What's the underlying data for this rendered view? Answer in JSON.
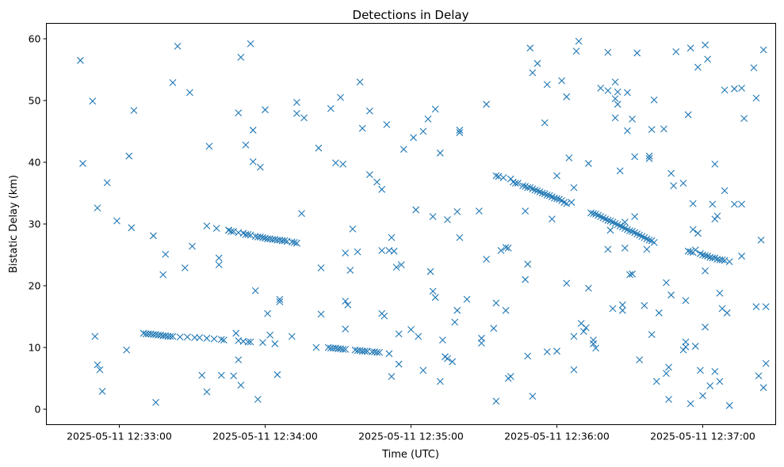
{
  "chart_data": {
    "type": "scatter",
    "title": "Detections in Delay",
    "xlabel": "Time (UTC)",
    "ylabel": "Bistatic Delay (km)",
    "marker": "x",
    "color": "#1f77b4",
    "grid": false,
    "legend": "none",
    "x_start": "2025-05-11 12:32:30",
    "x_end": "2025-05-11 12:37:30",
    "ylim": [
      -2.5,
      62.5
    ],
    "xticks": [
      "2025-05-11 12:33:00",
      "2025-05-11 12:34:00",
      "2025-05-11 12:35:00",
      "2025-05-11 12:36:00",
      "2025-05-11 12:37:00"
    ],
    "yticks": [
      0,
      10,
      20,
      30,
      40,
      50,
      60
    ],
    "points_xy_seconds_note": "x values in seconds past 2025-05-11 12:32:00",
    "points": [
      [
        14,
        56.5
      ],
      [
        15,
        39.8
      ],
      [
        19,
        49.9
      ],
      [
        20,
        11.8
      ],
      [
        21,
        32.6
      ],
      [
        21,
        7.2
      ],
      [
        22,
        6.4
      ],
      [
        23,
        2.9
      ],
      [
        25,
        36.7
      ],
      [
        29,
        30.5
      ],
      [
        33,
        9.6
      ],
      [
        34,
        41.0
      ],
      [
        35,
        29.4
      ],
      [
        36,
        48.4
      ],
      [
        44,
        28.1
      ],
      [
        45,
        1.1
      ],
      [
        48,
        21.8
      ],
      [
        49,
        25.1
      ],
      [
        52,
        52.9
      ],
      [
        54,
        58.8
      ],
      [
        57,
        22.9
      ],
      [
        59,
        51.3
      ],
      [
        60,
        26.4
      ],
      [
        64,
        5.5
      ],
      [
        66,
        2.8
      ],
      [
        66,
        29.7
      ],
      [
        67,
        42.6
      ],
      [
        70,
        29.3
      ],
      [
        71,
        24.5
      ],
      [
        71,
        23.4
      ],
      [
        72,
        5.5
      ],
      [
        75,
        29.0
      ],
      [
        77,
        5.4
      ],
      [
        78,
        12.3
      ],
      [
        79,
        48.0
      ],
      [
        79,
        8.0
      ],
      [
        80,
        3.9
      ],
      [
        80,
        57.0
      ],
      [
        82,
        42.8
      ],
      [
        84,
        59.2
      ],
      [
        85,
        45.2
      ],
      [
        85,
        40.1
      ],
      [
        86,
        19.2
      ],
      [
        87,
        1.6
      ],
      [
        88,
        39.2
      ],
      [
        89,
        10.8
      ],
      [
        90,
        48.5
      ],
      [
        91,
        15.5
      ],
      [
        92,
        12.0
      ],
      [
        94,
        10.6
      ],
      [
        95,
        5.6
      ],
      [
        96,
        17.8
      ],
      [
        96,
        17.4
      ],
      [
        101,
        11.8
      ],
      [
        103,
        49.7
      ],
      [
        103,
        47.9
      ],
      [
        105,
        31.7
      ],
      [
        106,
        47.2
      ],
      [
        111,
        10.0
      ],
      [
        112,
        42.3
      ],
      [
        113,
        15.4
      ],
      [
        113,
        22.9
      ],
      [
        117,
        48.7
      ],
      [
        119,
        39.9
      ],
      [
        121,
        50.5
      ],
      [
        122,
        39.7
      ],
      [
        123,
        25.3
      ],
      [
        123,
        17.5
      ],
      [
        123,
        13.0
      ],
      [
        124,
        16.9
      ],
      [
        125,
        22.5
      ],
      [
        126,
        29.2
      ],
      [
        128,
        25.5
      ],
      [
        129,
        53.0
      ],
      [
        130,
        45.5
      ],
      [
        133,
        48.3
      ],
      [
        133,
        38.0
      ],
      [
        136,
        36.8
      ],
      [
        138,
        35.6
      ],
      [
        138,
        15.5
      ],
      [
        138,
        25.7
      ],
      [
        139,
        15.1
      ],
      [
        140,
        46.1
      ],
      [
        141,
        25.7
      ],
      [
        142,
        27.8
      ],
      [
        142,
        5.3
      ],
      [
        143,
        25.6
      ],
      [
        144,
        23.0
      ],
      [
        145,
        12.2
      ],
      [
        145,
        7.3
      ],
      [
        146,
        23.4
      ],
      [
        147,
        42.1
      ],
      [
        150,
        12.9
      ],
      [
        151,
        44.0
      ],
      [
        152,
        32.3
      ],
      [
        153,
        11.8
      ],
      [
        155,
        45.0
      ],
      [
        155,
        6.3
      ],
      [
        157,
        47.0
      ],
      [
        158,
        22.3
      ],
      [
        159,
        31.2
      ],
      [
        159,
        19.1
      ],
      [
        160,
        48.6
      ],
      [
        160,
        18.1
      ],
      [
        162,
        41.5
      ],
      [
        162,
        4.5
      ],
      [
        163,
        11.2
      ],
      [
        164,
        8.5
      ],
      [
        165,
        30.7
      ],
      [
        165,
        8.2
      ],
      [
        167,
        7.7
      ],
      [
        168,
        14.1
      ],
      [
        169,
        32.0
      ],
      [
        169,
        16.0
      ],
      [
        170,
        27.8
      ],
      [
        170,
        45.2
      ],
      [
        170,
        44.8
      ],
      [
        173,
        17.8
      ],
      [
        178,
        32.1
      ],
      [
        179,
        11.5
      ],
      [
        179,
        10.7
      ],
      [
        181,
        49.4
      ],
      [
        181,
        24.3
      ],
      [
        184,
        13.1
      ],
      [
        185,
        17.2
      ],
      [
        185,
        1.3
      ],
      [
        187,
        25.7
      ],
      [
        189,
        16.0
      ],
      [
        189,
        26.2
      ],
      [
        190,
        26.1
      ],
      [
        190,
        5.0
      ],
      [
        191,
        5.3
      ],
      [
        197,
        21.0
      ],
      [
        197,
        32.1
      ],
      [
        198,
        23.5
      ],
      [
        198,
        8.6
      ],
      [
        199,
        58.5
      ],
      [
        200,
        54.5
      ],
      [
        200,
        2.1
      ],
      [
        202,
        56.0
      ],
      [
        205,
        46.4
      ],
      [
        206,
        52.6
      ],
      [
        206,
        9.3
      ],
      [
        208,
        30.8
      ],
      [
        210,
        37.8
      ],
      [
        210,
        9.4
      ],
      [
        212,
        53.2
      ],
      [
        214,
        20.4
      ],
      [
        214,
        50.6
      ],
      [
        215,
        40.7
      ],
      [
        216,
        33.5
      ],
      [
        217,
        35.9
      ],
      [
        217,
        6.4
      ],
      [
        217,
        11.8
      ],
      [
        218,
        58.0
      ],
      [
        219,
        59.6
      ],
      [
        220,
        13.9
      ],
      [
        221,
        12.6
      ],
      [
        222,
        13.2
      ],
      [
        223,
        19.6
      ],
      [
        223,
        39.8
      ],
      [
        225,
        11.2
      ],
      [
        225,
        10.6
      ],
      [
        226,
        9.9
      ],
      [
        228,
        52.0
      ],
      [
        231,
        25.9
      ],
      [
        231,
        57.8
      ],
      [
        231,
        51.6
      ],
      [
        232,
        29.0
      ],
      [
        233,
        16.3
      ],
      [
        234,
        50.3
      ],
      [
        234,
        47.2
      ],
      [
        234,
        53.0
      ],
      [
        235,
        51.4
      ],
      [
        235,
        49.4
      ],
      [
        236,
        38.6
      ],
      [
        237,
        16.9
      ],
      [
        237,
        16.0
      ],
      [
        238,
        26.1
      ],
      [
        238,
        30.3
      ],
      [
        239,
        45.1
      ],
      [
        239,
        51.3
      ],
      [
        240,
        21.8
      ],
      [
        241,
        47.0
      ],
      [
        241,
        21.9
      ],
      [
        242,
        40.9
      ],
      [
        242,
        31.2
      ],
      [
        243,
        57.7
      ],
      [
        244,
        8.0
      ],
      [
        246,
        16.8
      ],
      [
        247,
        25.9
      ],
      [
        248,
        40.6
      ],
      [
        248,
        41.0
      ],
      [
        249,
        45.3
      ],
      [
        249,
        12.1
      ],
      [
        250,
        50.1
      ],
      [
        251,
        4.5
      ],
      [
        252,
        15.6
      ],
      [
        254,
        45.4
      ],
      [
        255,
        5.8
      ],
      [
        255,
        20.5
      ],
      [
        256,
        1.6
      ],
      [
        256,
        6.8
      ],
      [
        257,
        18.5
      ],
      [
        257,
        38.2
      ],
      [
        258,
        36.2
      ],
      [
        259,
        57.9
      ],
      [
        262,
        36.6
      ],
      [
        262,
        9.6
      ],
      [
        263,
        17.6
      ],
      [
        263,
        10.1
      ],
      [
        263,
        10.9
      ],
      [
        264,
        47.7
      ],
      [
        265,
        0.9
      ],
      [
        265,
        58.5
      ],
      [
        266,
        33.3
      ],
      [
        266,
        29.1
      ],
      [
        267,
        10.2
      ],
      [
        267,
        25.8
      ],
      [
        268,
        28.5
      ],
      [
        268,
        55.4
      ],
      [
        269,
        6.3
      ],
      [
        270,
        2.2
      ],
      [
        271,
        59.0
      ],
      [
        271,
        13.3
      ],
      [
        271,
        22.4
      ],
      [
        272,
        56.7
      ],
      [
        273,
        3.8
      ],
      [
        274,
        33.2
      ],
      [
        275,
        6.1
      ],
      [
        275,
        30.8
      ],
      [
        275,
        39.7
      ],
      [
        276,
        31.3
      ],
      [
        277,
        18.8
      ],
      [
        277,
        4.5
      ],
      [
        278,
        16.3
      ],
      [
        279,
        51.7
      ],
      [
        279,
        35.4
      ],
      [
        280,
        15.6
      ],
      [
        281,
        0.6
      ],
      [
        283,
        33.2
      ],
      [
        283,
        51.9
      ],
      [
        286,
        33.2
      ],
      [
        286,
        24.8
      ],
      [
        286,
        52.0
      ],
      [
        287,
        47.1
      ],
      [
        291,
        55.3
      ],
      [
        292,
        16.6
      ],
      [
        292,
        50.4
      ],
      [
        293,
        5.4
      ],
      [
        294,
        27.4
      ],
      [
        295,
        58.2
      ],
      [
        295,
        3.5
      ],
      [
        296,
        16.6
      ],
      [
        296,
        7.4
      ],
      [
        40,
        12.3
      ],
      [
        41,
        12.2
      ],
      [
        42,
        12.2
      ],
      [
        43,
        12.2
      ],
      [
        44,
        12.1
      ],
      [
        45,
        12.1
      ],
      [
        46,
        12.0
      ],
      [
        47,
        12.0
      ],
      [
        48,
        11.9
      ],
      [
        49,
        11.9
      ],
      [
        50,
        11.8
      ],
      [
        51,
        11.8
      ],
      [
        52,
        11.8
      ],
      [
        55,
        11.7
      ],
      [
        58,
        11.7
      ],
      [
        61,
        11.6
      ],
      [
        63,
        11.6
      ],
      [
        66,
        11.5
      ],
      [
        69,
        11.4
      ],
      [
        72,
        11.3
      ],
      [
        73,
        11.2
      ],
      [
        79,
        11.1
      ],
      [
        81,
        11.0
      ],
      [
        83,
        10.9
      ],
      [
        84,
        10.9
      ],
      [
        75,
        29.0
      ],
      [
        76,
        28.8
      ],
      [
        77,
        28.8
      ],
      [
        79,
        28.6
      ],
      [
        81,
        28.5
      ],
      [
        82,
        28.3
      ],
      [
        83,
        28.3
      ],
      [
        84,
        28.2
      ],
      [
        86,
        28.0
      ],
      [
        87,
        27.9
      ],
      [
        88,
        27.9
      ],
      [
        89,
        27.8
      ],
      [
        90,
        27.7
      ],
      [
        91,
        27.6
      ],
      [
        92,
        27.6
      ],
      [
        93,
        27.5
      ],
      [
        94,
        27.5
      ],
      [
        95,
        27.4
      ],
      [
        96,
        27.4
      ],
      [
        97,
        27.3
      ],
      [
        98,
        27.3
      ],
      [
        99,
        27.2
      ],
      [
        101,
        27.1
      ],
      [
        102,
        27.0
      ],
      [
        103,
        26.9
      ],
      [
        116,
        10.0
      ],
      [
        117,
        9.9
      ],
      [
        118,
        9.9
      ],
      [
        119,
        9.9
      ],
      [
        120,
        9.8
      ],
      [
        121,
        9.8
      ],
      [
        122,
        9.7
      ],
      [
        123,
        9.7
      ],
      [
        127,
        9.6
      ],
      [
        128,
        9.5
      ],
      [
        129,
        9.5
      ],
      [
        130,
        9.4
      ],
      [
        131,
        9.4
      ],
      [
        132,
        9.4
      ],
      [
        134,
        9.3
      ],
      [
        135,
        9.3
      ],
      [
        136,
        9.2
      ],
      [
        137,
        9.2
      ],
      [
        141,
        9.0
      ],
      [
        185,
        37.8
      ],
      [
        186,
        37.7
      ],
      [
        188,
        37.5
      ],
      [
        191,
        37.3
      ],
      [
        192,
        36.8
      ],
      [
        193,
        36.6
      ],
      [
        194,
        36.6
      ],
      [
        196,
        36.2
      ],
      [
        197,
        36.1
      ],
      [
        198,
        35.9
      ],
      [
        199,
        35.9
      ],
      [
        200,
        35.7
      ],
      [
        201,
        35.5
      ],
      [
        202,
        35.4
      ],
      [
        203,
        35.2
      ],
      [
        204,
        35.0
      ],
      [
        205,
        34.9
      ],
      [
        206,
        34.7
      ],
      [
        207,
        34.6
      ],
      [
        208,
        34.4
      ],
      [
        209,
        34.2
      ],
      [
        210,
        34.1
      ],
      [
        211,
        34.0
      ],
      [
        212,
        33.8
      ],
      [
        213,
        33.5
      ],
      [
        214,
        33.3
      ],
      [
        224,
        31.8
      ],
      [
        225,
        31.7
      ],
      [
        226,
        31.6
      ],
      [
        227,
        31.4
      ],
      [
        228,
        31.2
      ],
      [
        229,
        31.0
      ],
      [
        230,
        30.8
      ],
      [
        231,
        30.6
      ],
      [
        232,
        30.5
      ],
      [
        233,
        30.3
      ],
      [
        234,
        30.1
      ],
      [
        235,
        29.9
      ],
      [
        236,
        29.7
      ],
      [
        237,
        29.5
      ],
      [
        238,
        29.3
      ],
      [
        239,
        29.1
      ],
      [
        240,
        28.9
      ],
      [
        241,
        28.8
      ],
      [
        242,
        28.6
      ],
      [
        243,
        28.4
      ],
      [
        244,
        28.2
      ],
      [
        245,
        28.0
      ],
      [
        246,
        27.8
      ],
      [
        247,
        27.6
      ],
      [
        248,
        27.4
      ],
      [
        249,
        27.3
      ],
      [
        250,
        27.0
      ],
      [
        264,
        25.6
      ],
      [
        265,
        25.5
      ],
      [
        266,
        25.4
      ],
      [
        269,
        25.2
      ],
      [
        270,
        25.0
      ],
      [
        271,
        24.9
      ],
      [
        272,
        24.8
      ],
      [
        273,
        24.6
      ],
      [
        274,
        24.5
      ],
      [
        275,
        24.5
      ],
      [
        276,
        24.3
      ],
      [
        277,
        24.2
      ],
      [
        278,
        24.2
      ],
      [
        279,
        24.1
      ],
      [
        281,
        23.9
      ]
    ]
  }
}
